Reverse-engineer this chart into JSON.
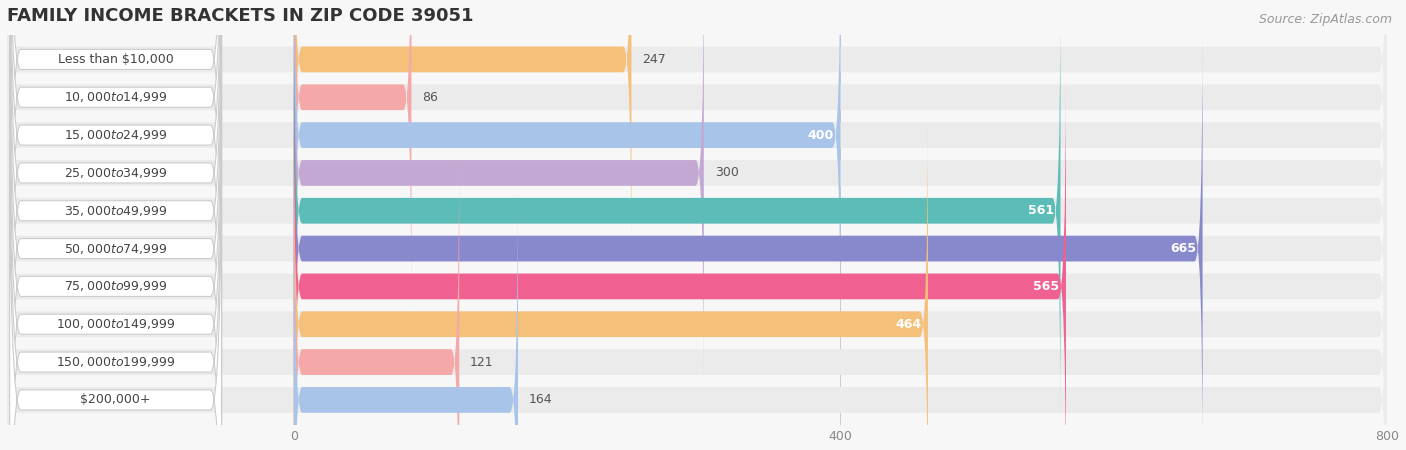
{
  "title": "FAMILY INCOME BRACKETS IN ZIP CODE 39051",
  "source": "Source: ZipAtlas.com",
  "categories": [
    "Less than $10,000",
    "$10,000 to $14,999",
    "$15,000 to $24,999",
    "$25,000 to $34,999",
    "$35,000 to $49,999",
    "$50,000 to $74,999",
    "$75,000 to $99,999",
    "$100,000 to $149,999",
    "$150,000 to $199,999",
    "$200,000+"
  ],
  "values": [
    247,
    86,
    400,
    300,
    561,
    665,
    565,
    464,
    121,
    164
  ],
  "bar_colors": [
    "#F5C07A",
    "#F4A8A8",
    "#A8C4E8",
    "#C4A8D4",
    "#5BBCB8",
    "#8888CC",
    "#F06090",
    "#F5C07A",
    "#F4A8A8",
    "#A8C4E8"
  ],
  "pill_colors": [
    "#F5C07A",
    "#F4A8A8",
    "#A8C4E8",
    "#C4A8D4",
    "#5BBCB8",
    "#8888CC",
    "#F06090",
    "#F5C07A",
    "#F4A8A8",
    "#A8C4E8"
  ],
  "label_colors": [
    "#555555",
    "#555555",
    "#555555",
    "#555555",
    "#ffffff",
    "#ffffff",
    "#ffffff",
    "#555555",
    "#555555",
    "#555555"
  ],
  "background_color": "#f7f7f7",
  "row_bg_color": "#ebebeb",
  "xlim_left": -210,
  "xlim_right": 800,
  "xticks": [
    0,
    400,
    800
  ],
  "bar_height": 0.68,
  "title_fontsize": 13,
  "source_fontsize": 9,
  "value_fontsize": 9,
  "category_fontsize": 9
}
